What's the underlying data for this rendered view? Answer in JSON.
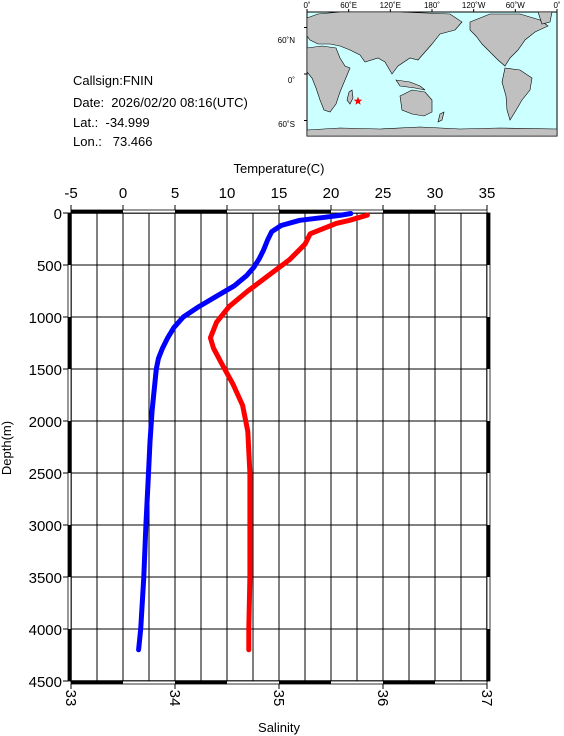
{
  "info": {
    "callsign": "Callsign:FNIN",
    "date": "Date:  2026/02/20 08:16(UTC)",
    "lat": "Lat.:  -34.999",
    "lon": "Lon.:   73.466"
  },
  "map": {
    "top_ticks": [
      "0˚",
      "60˚E",
      "120˚E",
      "180˚",
      "120˚W",
      "60˚W",
      "0˚"
    ],
    "left_ticks": [
      "60˚N",
      "0˚",
      "60˚S"
    ],
    "ocean_color": "#ccffff",
    "land_color": "#c0c0c0",
    "marker": {
      "lon": 73.466,
      "lat": -34.999,
      "symbol": "star",
      "color": "#ff0000"
    }
  },
  "chart_data": {
    "type": "line",
    "xlabel_top": "Temperature(C)",
    "xlabel_bottom": "Salinity",
    "ylabel": "Depth(m)",
    "temperature_axis": {
      "range": [
        -5,
        35
      ],
      "ticks": [
        "-5",
        "0",
        "5",
        "10",
        "15",
        "20",
        "25",
        "30",
        "35"
      ]
    },
    "salinity_axis": {
      "range": [
        33,
        37
      ],
      "ticks": [
        "33",
        "34",
        "35",
        "36",
        "37"
      ]
    },
    "depth_axis": {
      "range": [
        0,
        4500
      ],
      "inverted": true,
      "ticks": [
        "0",
        "500",
        "1000",
        "1500",
        "2000",
        "2500",
        "3000",
        "3500",
        "4000",
        "4500"
      ]
    },
    "grid": true,
    "series": [
      {
        "quantity": "temperature",
        "color": "#0000ff",
        "points": [
          [
            21.9,
            5
          ],
          [
            21.0,
            20
          ],
          [
            19.5,
            40
          ],
          [
            17.0,
            70
          ],
          [
            15.2,
            120
          ],
          [
            14.3,
            180
          ],
          [
            13.9,
            260
          ],
          [
            13.5,
            360
          ],
          [
            13.1,
            440
          ],
          [
            12.6,
            520
          ],
          [
            11.9,
            600
          ],
          [
            10.7,
            700
          ],
          [
            9.0,
            800
          ],
          [
            7.3,
            900
          ],
          [
            5.8,
            1000
          ],
          [
            4.9,
            1100
          ],
          [
            4.3,
            1200
          ],
          [
            3.8,
            1300
          ],
          [
            3.4,
            1400
          ],
          [
            3.2,
            1500
          ],
          [
            3.0,
            1700
          ],
          [
            2.8,
            1900
          ],
          [
            2.6,
            2200
          ],
          [
            2.4,
            2600
          ],
          [
            2.2,
            3000
          ],
          [
            2.0,
            3500
          ],
          [
            1.7,
            4000
          ],
          [
            1.5,
            4200
          ]
        ]
      },
      {
        "quantity": "salinity",
        "color": "#ff0000",
        "points": [
          [
            35.85,
            20
          ],
          [
            35.78,
            40
          ],
          [
            35.68,
            70
          ],
          [
            35.55,
            100
          ],
          [
            35.3,
            200
          ],
          [
            35.25,
            300
          ],
          [
            35.1,
            450
          ],
          [
            34.9,
            600
          ],
          [
            34.7,
            750
          ],
          [
            34.52,
            900
          ],
          [
            34.4,
            1050
          ],
          [
            34.34,
            1200
          ],
          [
            34.37,
            1300
          ],
          [
            34.45,
            1450
          ],
          [
            34.56,
            1650
          ],
          [
            34.65,
            1850
          ],
          [
            34.7,
            2100
          ],
          [
            34.72,
            2500
          ],
          [
            34.72,
            3000
          ],
          [
            34.72,
            3500
          ],
          [
            34.71,
            4000
          ],
          [
            34.71,
            4200
          ]
        ]
      }
    ]
  }
}
